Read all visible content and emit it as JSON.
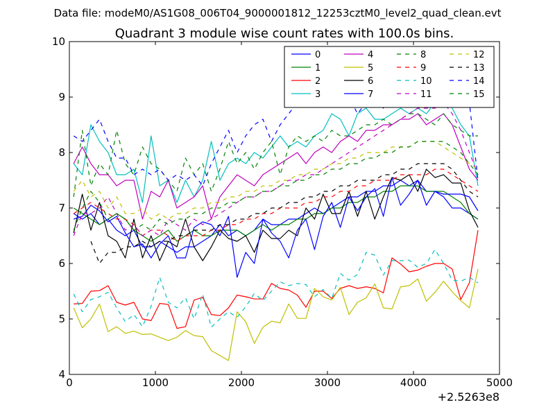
{
  "figure": {
    "header": "Data file: modeM0/AS1G08_006T04_9000001812_12253cztM0_level2_quad_clean.evt"
  },
  "chart_data": {
    "type": "line",
    "title": "Quadrant 3 module wise count rates with 100.0s bins.",
    "xlabel": "",
    "ylabel": "",
    "x_offset_label": "+2.5263e8",
    "xlim": [
      0,
      5000
    ],
    "ylim": [
      4,
      10
    ],
    "xticks": [
      0,
      1000,
      2000,
      3000,
      4000,
      5000
    ],
    "yticks": [
      4,
      5,
      6,
      7,
      8,
      9,
      10
    ],
    "grid": false,
    "legend": {
      "placement": "top-right",
      "columns": 4
    },
    "x": [
      50,
      150,
      250,
      350,
      450,
      550,
      650,
      750,
      850,
      950,
      1050,
      1150,
      1250,
      1350,
      1450,
      1550,
      1650,
      1750,
      1850,
      1950,
      2050,
      2150,
      2250,
      2350,
      2450,
      2550,
      2650,
      2750,
      2850,
      2950,
      3050,
      3150,
      3250,
      3350,
      3450,
      3550,
      3650,
      3750,
      3850,
      3950,
      4050,
      4150,
      4250,
      4350,
      4450,
      4550,
      4650,
      4750
    ],
    "series": [
      {
        "name": "0",
        "color": "#0000ff",
        "dash": "solid",
        "values": [
          6.9,
          6.8,
          6.9,
          6.7,
          6.8,
          6.6,
          6.5,
          6.6,
          6.3,
          6.3,
          6.4,
          6.3,
          6.2,
          6.3,
          6.3,
          6.4,
          6.5,
          6.7,
          6.5,
          6.6,
          6.5,
          6.6,
          6.8,
          6.7,
          6.7,
          6.8,
          6.8,
          6.9,
          7.0,
          6.9,
          7.0,
          7.1,
          7.2,
          7.2,
          7.3,
          7.3,
          7.4,
          7.4,
          7.5,
          7.4,
          7.5,
          7.3,
          7.3,
          7.2,
          7.0,
          7.0,
          6.9,
          6.8
        ]
      },
      {
        "name": "1",
        "color": "#008000",
        "dash": "solid",
        "values": [
          7.0,
          6.9,
          6.8,
          6.7,
          6.8,
          6.9,
          6.8,
          6.6,
          6.5,
          6.4,
          6.5,
          6.6,
          6.4,
          6.5,
          6.6,
          6.5,
          6.5,
          6.6,
          6.6,
          6.6,
          6.5,
          6.6,
          6.7,
          6.6,
          6.7,
          6.7,
          6.8,
          6.8,
          6.9,
          6.9,
          7.0,
          7.0,
          7.1,
          7.1,
          7.2,
          7.2,
          7.3,
          7.3,
          7.4,
          7.4,
          7.4,
          7.3,
          7.3,
          7.3,
          7.2,
          7.1,
          6.9,
          6.8
        ]
      },
      {
        "name": "2",
        "color": "#ff0000",
        "dash": "solid",
        "values": [
          5.27,
          5.28,
          5.5,
          5.51,
          5.6,
          5.3,
          5.25,
          5.3,
          5.0,
          4.97,
          5.28,
          5.26,
          4.83,
          4.86,
          5.34,
          5.39,
          5.08,
          5.06,
          5.2,
          5.43,
          5.4,
          5.36,
          5.36,
          5.64,
          5.55,
          5.52,
          5.43,
          5.21,
          5.5,
          5.5,
          5.37,
          5.55,
          5.6,
          5.55,
          5.58,
          5.55,
          5.47,
          6.1,
          5.99,
          5.85,
          5.88,
          5.95,
          6.0,
          6.0,
          5.9,
          5.35,
          5.65,
          6.6
        ]
      },
      {
        "name": "3",
        "color": "#00bfbf",
        "dash": "solid",
        "values": [
          7.8,
          7.6,
          8.5,
          8.2,
          8.0,
          7.6,
          7.6,
          7.7,
          7.1,
          8.3,
          7.4,
          7.5,
          7.1,
          7.5,
          7.2,
          7.5,
          8.2,
          7.5,
          7.8,
          7.9,
          7.8,
          8.0,
          7.9,
          8.1,
          8.3,
          8.1,
          8.2,
          8.1,
          8.3,
          8.4,
          8.7,
          8.6,
          8.3,
          8.7,
          8.8,
          8.6,
          8.6,
          8.7,
          8.8,
          8.7,
          8.8,
          8.7,
          8.9,
          9.0,
          8.8,
          8.5,
          8.3,
          7.4
        ]
      },
      {
        "name": "4",
        "color": "#bf00bf",
        "dash": "solid",
        "values": [
          7.8,
          8.1,
          7.8,
          7.6,
          7.6,
          7.4,
          7.5,
          7.5,
          6.8,
          7.3,
          7.2,
          7.5,
          7.0,
          7.1,
          7.2,
          7.4,
          6.8,
          7.2,
          7.4,
          7.6,
          7.5,
          7.4,
          7.6,
          7.7,
          7.8,
          7.9,
          8.0,
          7.8,
          8.0,
          8.1,
          8.0,
          8.2,
          8.3,
          8.2,
          8.4,
          8.4,
          8.5,
          8.5,
          8.6,
          8.6,
          8.7,
          8.5,
          8.6,
          8.7,
          8.5,
          8.1,
          7.7,
          7.5
        ]
      },
      {
        "name": "5",
        "color": "#bfbf00",
        "dash": "solid",
        "values": [
          5.2,
          4.84,
          5.0,
          5.27,
          4.77,
          4.86,
          4.74,
          4.78,
          4.72,
          4.73,
          4.67,
          4.61,
          4.67,
          4.79,
          4.7,
          4.68,
          4.43,
          4.34,
          4.25,
          5.13,
          4.95,
          4.56,
          4.85,
          4.96,
          4.93,
          5.27,
          5.01,
          5.01,
          5.55,
          5.4,
          5.34,
          5.57,
          5.08,
          5.3,
          5.38,
          5.63,
          5.2,
          5.18,
          5.58,
          5.6,
          5.72,
          5.32,
          5.48,
          5.68,
          5.49,
          5.33,
          5.2,
          5.9
        ]
      },
      {
        "name": "6",
        "color": "#000000",
        "dash": "solid",
        "values": [
          6.55,
          7.25,
          6.6,
          7.1,
          6.5,
          6.4,
          6.1,
          6.8,
          6.1,
          6.5,
          6.05,
          6.4,
          6.3,
          6.8,
          6.3,
          6.05,
          6.3,
          6.6,
          6.45,
          6.4,
          6.5,
          6.2,
          6.6,
          6.45,
          6.45,
          6.6,
          6.5,
          7.0,
          6.8,
          7.25,
          6.9,
          6.9,
          7.3,
          6.85,
          7.3,
          6.8,
          7.2,
          7.55,
          7.5,
          7.6,
          7.3,
          7.7,
          7.55,
          7.6,
          7.45,
          7.45,
          6.95,
          6.65
        ]
      },
      {
        "name": "7",
        "color": "#0000ff",
        "dash": "solid",
        "values": [
          6.8,
          6.85,
          7.05,
          6.95,
          6.75,
          6.85,
          6.55,
          6.3,
          6.35,
          6.1,
          6.35,
          6.5,
          6.1,
          6.1,
          6.65,
          6.75,
          6.7,
          6.5,
          6.85,
          5.75,
          6.2,
          6.0,
          6.8,
          6.55,
          6.4,
          6.1,
          6.6,
          6.8,
          6.25,
          6.85,
          7.1,
          6.65,
          7.2,
          6.95,
          7.2,
          7.35,
          6.85,
          7.55,
          7.05,
          7.25,
          7.5,
          7.05,
          7.3,
          7.25,
          7.25,
          7.25,
          7.2,
          6.95
        ]
      },
      {
        "name": "8",
        "color": "#008000",
        "dash": "dashed",
        "values": [
          7.2,
          8.4,
          7.4,
          7.8,
          7.6,
          8.4,
          7.8,
          7.6,
          8.1,
          7.8,
          7.7,
          7.5,
          7.3,
          7.9,
          7.6,
          7.8,
          7.3,
          7.7,
          8.2,
          7.8,
          8.0,
          7.7,
          8.0,
          8.2,
          7.6,
          8.1,
          8.3,
          8.2,
          8.3,
          8.2,
          8.4,
          8.3,
          8.3,
          8.4,
          8.5,
          8.5,
          8.6,
          8.5,
          8.6,
          8.7,
          8.7,
          8.6,
          8.5,
          8.7,
          8.5,
          8.4,
          8.3,
          8.3
        ]
      },
      {
        "name": "9",
        "color": "#ff0000",
        "dash": "dashed",
        "values": [
          6.9,
          7.0,
          7.1,
          7.0,
          6.9,
          6.8,
          6.8,
          6.7,
          6.5,
          6.6,
          6.6,
          6.5,
          6.4,
          6.5,
          6.5,
          6.5,
          6.6,
          6.6,
          6.7,
          6.7,
          6.8,
          6.8,
          6.9,
          6.9,
          7.0,
          7.0,
          7.0,
          7.1,
          7.1,
          7.2,
          7.2,
          7.3,
          7.3,
          7.4,
          7.4,
          7.5,
          7.5,
          7.5,
          7.6,
          7.6,
          7.6,
          7.6,
          7.7,
          7.7,
          7.6,
          7.5,
          7.4,
          7.3
        ]
      },
      {
        "name": "10",
        "color": "#00bfbf",
        "dash": "dashed",
        "values": [
          5.45,
          5.13,
          5.35,
          5.4,
          5.48,
          5.2,
          4.95,
          5.08,
          4.86,
          5.23,
          5.75,
          5.3,
          5.2,
          5.38,
          5.0,
          5.45,
          4.85,
          5.0,
          5.13,
          5.03,
          5.22,
          5.46,
          5.33,
          5.5,
          5.67,
          5.6,
          5.64,
          5.62,
          5.4,
          5.53,
          5.37,
          5.82,
          5.7,
          5.8,
          6.2,
          6.15,
          5.79,
          6.05,
          6.05,
          6.06,
          5.93,
          6.0,
          6.25,
          6.0,
          5.7,
          5.68,
          5.75,
          5.65
        ]
      },
      {
        "name": "11",
        "color": "#bf00bf",
        "dash": "dashed",
        "values": [
          6.5,
          6.9,
          6.9,
          7.0,
          7.2,
          6.9,
          6.6,
          6.7,
          6.5,
          6.6,
          6.5,
          6.8,
          6.7,
          6.6,
          6.8,
          6.7,
          6.8,
          6.9,
          7.0,
          7.1,
          7.2,
          7.2,
          7.3,
          7.3,
          7.4,
          7.5,
          7.5,
          7.6,
          7.6,
          7.7,
          7.8,
          7.9,
          8.0,
          8.1,
          8.2,
          8.3,
          8.4,
          8.5,
          8.6,
          8.7,
          8.8,
          8.8,
          8.8,
          8.9,
          8.7,
          8.4,
          8.0,
          7.6
        ]
      },
      {
        "name": "12",
        "color": "#bfbf00",
        "dash": "dashed",
        "values": [
          7.3,
          7.5,
          7.2,
          7.3,
          7.0,
          7.2,
          6.9,
          6.9,
          7.0,
          6.8,
          6.9,
          6.8,
          6.9,
          6.9,
          7.0,
          7.0,
          7.1,
          7.1,
          7.2,
          7.2,
          7.3,
          7.3,
          7.4,
          7.4,
          7.5,
          7.5,
          7.6,
          7.6,
          7.7,
          7.7,
          7.8,
          7.8,
          7.9,
          7.9,
          8.0,
          8.0,
          8.0,
          8.1,
          8.1,
          8.1,
          8.2,
          8.2,
          8.2,
          8.1,
          8.0,
          7.9,
          7.8,
          7.7
        ]
      },
      {
        "name": "13",
        "color": "#000000",
        "dash": "dashed",
        "values": [
          null,
          null,
          6.4,
          6.0,
          6.2,
          6.2,
          6.3,
          6.3,
          6.4,
          6.3,
          6.4,
          6.4,
          6.5,
          6.5,
          6.6,
          6.6,
          6.6,
          6.7,
          6.7,
          6.8,
          6.8,
          6.9,
          6.9,
          7.0,
          7.0,
          7.1,
          7.1,
          7.2,
          7.2,
          7.3,
          7.3,
          7.4,
          7.4,
          7.5,
          7.5,
          7.5,
          7.6,
          7.6,
          7.7,
          7.7,
          7.8,
          7.8,
          7.8,
          7.8,
          7.7,
          7.5,
          7.3,
          7.2
        ]
      },
      {
        "name": "14",
        "color": "#0000ff",
        "dash": "dashed",
        "values": [
          8.3,
          8.2,
          8.4,
          8.6,
          8.2,
          7.9,
          7.9,
          7.6,
          7.7,
          7.6,
          7.7,
          7.5,
          7.6,
          7.5,
          7.6,
          7.4,
          7.8,
          8.1,
          8.4,
          8.0,
          8.3,
          8.5,
          8.6,
          8.2,
          8.5,
          8.7,
          8.9,
          8.8,
          9.0,
          9.1,
          9.0,
          9.1,
          9.0,
          8.7,
          8.9,
          9.0,
          8.8,
          9.1,
          9.2,
          9.1,
          9.0,
          9.2,
          9.4,
          9.3,
          9.0,
          8.9,
          8.9,
          7.5
        ]
      },
      {
        "name": "15",
        "color": "#008000",
        "dash": "dashed",
        "values": [
          6.6,
          7.0,
          7.3,
          7.1,
          6.8,
          6.9,
          6.8,
          6.6,
          6.7,
          6.6,
          6.8,
          6.7,
          6.8,
          6.8,
          6.9,
          6.9,
          7.0,
          7.0,
          7.1,
          7.1,
          7.2,
          7.2,
          7.3,
          7.3,
          7.4,
          7.4,
          7.5,
          7.5,
          7.6,
          7.6,
          7.7,
          7.7,
          7.8,
          7.8,
          7.9,
          7.9,
          8.0,
          8.0,
          8.1,
          8.1,
          8.2,
          8.2,
          8.2,
          8.2,
          8.1,
          8.0,
          7.8,
          7.6
        ]
      }
    ]
  }
}
